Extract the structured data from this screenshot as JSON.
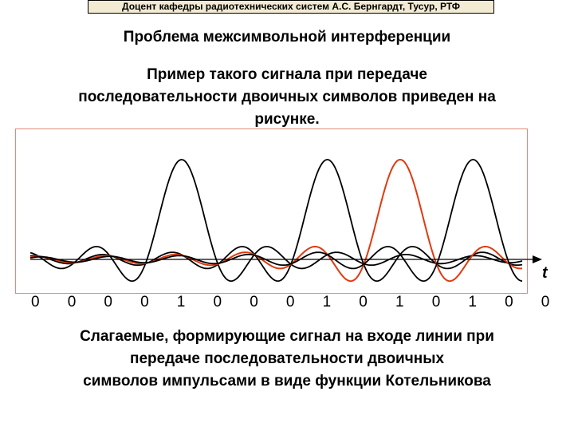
{
  "header": {
    "text": "Доцент кафедры радиотехнических систем А.С. Бернгардт,  Тусур, РТФ"
  },
  "title": "Проблема межсимвольной интерференции",
  "intro": {
    "line1": "Пример такого сигнала при передаче",
    "line2": "последовательности двоичных символов приведен на",
    "line3": "рисунке."
  },
  "chart_data": {
    "type": "line",
    "time_label": "t",
    "bits": [
      "0",
      "0",
      "0",
      "0",
      "1",
      "0",
      "0",
      "0",
      "1",
      "0",
      "1",
      "0",
      "1",
      "0",
      "0"
    ],
    "pulse_positions": [
      4,
      8,
      10,
      12
    ],
    "highlighted_pulse_position": 10,
    "colors": {
      "pulse": "#000000",
      "highlight": "#e03a10",
      "axis": "#000000"
    }
  },
  "caption": {
    "line1": "Слагаемые, формирующие сигнал на входе линии при",
    "line2": "передаче последовательности двоичных",
    "line3": "символов импульсами в виде функции Котельникова"
  }
}
